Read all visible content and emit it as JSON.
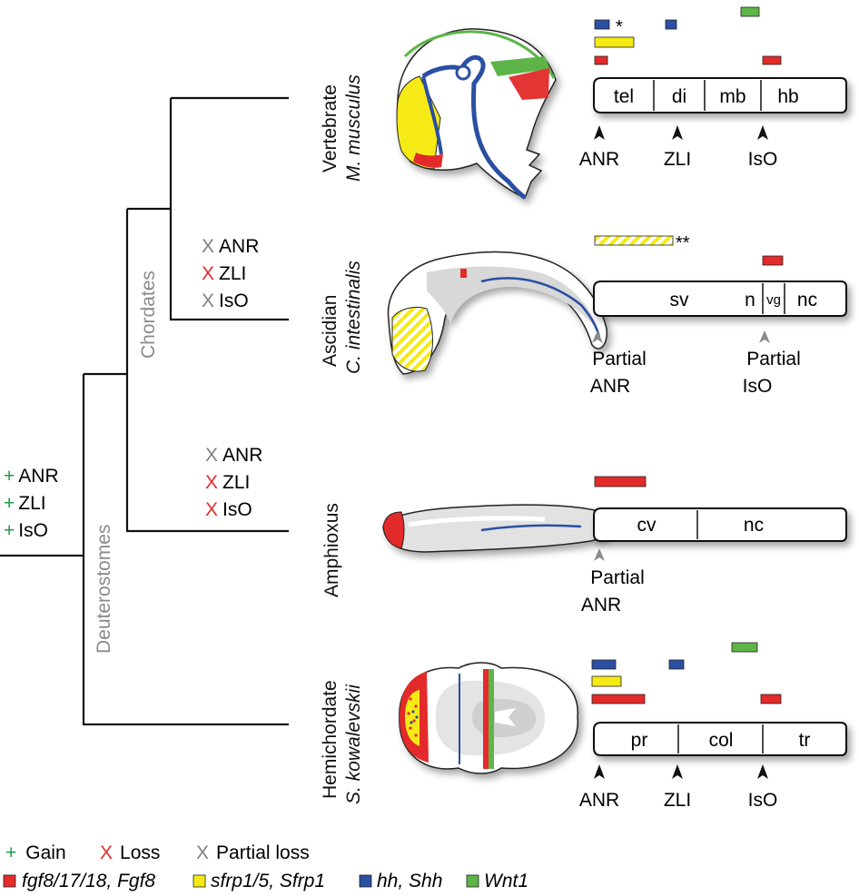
{
  "root_events": [
    {
      "symbol": "+",
      "label": "ANR"
    },
    {
      "symbol": "+",
      "label": "ZLI"
    },
    {
      "symbol": "+",
      "label": "IsO"
    }
  ],
  "clade_labels": {
    "deuterostomes": "Deuterostomes",
    "chordates": "Chordates"
  },
  "chordate_losses": [
    {
      "symbol": "X",
      "label": "ANR",
      "kind": "partial"
    },
    {
      "symbol": "X",
      "label": "ZLI",
      "kind": "loss"
    },
    {
      "symbol": "X",
      "label": "IsO",
      "kind": "partial"
    }
  ],
  "ascidian_losses": [
    {
      "symbol": "X",
      "label": "ANR",
      "kind": "partial"
    },
    {
      "symbol": "X",
      "label": "ZLI",
      "kind": "loss"
    },
    {
      "symbol": "X",
      "label": "IsO",
      "kind": "partial"
    }
  ],
  "amphioxus_losses": [
    {
      "symbol": "X",
      "label": "ANR",
      "kind": "partial"
    },
    {
      "symbol": "X",
      "label": "ZLI",
      "kind": "loss"
    },
    {
      "symbol": "X",
      "label": "IsO",
      "kind": "loss"
    }
  ],
  "taxa": {
    "vertebrate": {
      "line1": "Vertebrate",
      "line2": "M. musculus",
      "regions": [
        "tel",
        "di",
        "mb",
        "hb"
      ],
      "markers": [
        "ANR",
        "ZLI",
        "IsO"
      ],
      "asterisk": "*"
    },
    "ascidian": {
      "line1": "Ascidian",
      "line2": "C. intestinalis",
      "regions": [
        "sv",
        "n",
        "vg",
        "nc"
      ],
      "markers": [
        {
          "l1": "Partial",
          "l2": "ANR"
        },
        {
          "l1": "Partial",
          "l2": "IsO"
        }
      ],
      "asterisk": "**"
    },
    "amphioxus": {
      "line1": "Amphioxus",
      "regions": [
        "cv",
        "nc"
      ],
      "markers": [
        {
          "l1": "Partial",
          "l2": "ANR"
        }
      ]
    },
    "hemichordate": {
      "line1": "Hemichordate",
      "line2": "S. kowalevskii",
      "regions": [
        "pr",
        "col",
        "tr"
      ],
      "markers": [
        "ANR",
        "ZLI",
        "IsO"
      ]
    }
  },
  "legend": {
    "events": [
      {
        "symbol": "+",
        "label": "Gain"
      },
      {
        "symbol": "X",
        "label": "Loss"
      },
      {
        "symbol": "X",
        "label": "Partial loss"
      }
    ],
    "genes": [
      {
        "label": "fgf8/17/18, Fgf8",
        "color": "#e32b2b"
      },
      {
        "label": "sfrp1/5, Sfrp1",
        "color": "#f5ea14"
      },
      {
        "label": "hh, Shh",
        "color": "#2b4fa3"
      },
      {
        "label": "Wnt1",
        "color": "#5db548"
      }
    ]
  },
  "colors": {
    "gain": "#1f9a48",
    "loss": "#e32b2b",
    "partial": "#808080",
    "fgf8": "#e32b2b",
    "sfrp": "#f5ea14",
    "hh": "#2b4fa3",
    "wnt1": "#5db548"
  }
}
